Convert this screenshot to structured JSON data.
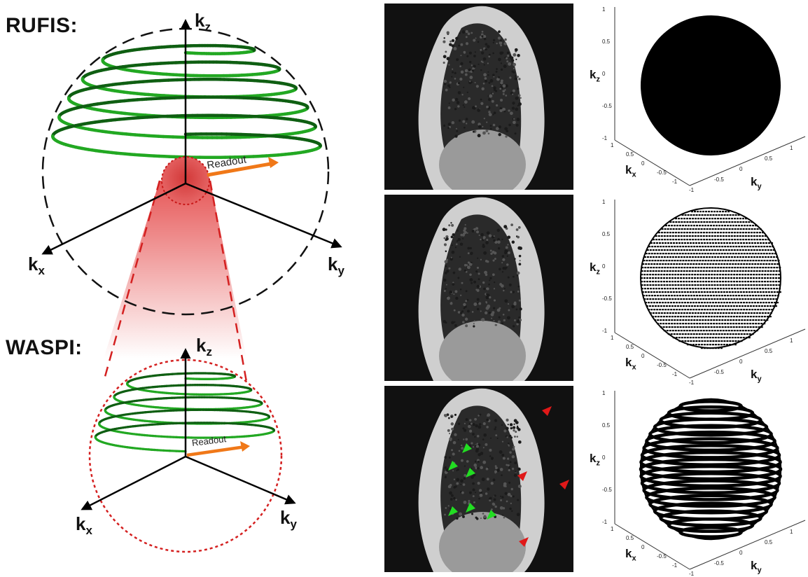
{
  "left": {
    "rufis_title": "RUFIS:",
    "waspi_title": "WASPI:",
    "readout_label": "Readout",
    "axes": {
      "kz": "k",
      "kz_sub": "z",
      "kx": "k",
      "kx_sub": "x",
      "ky": "k",
      "ky_sub": "y"
    }
  },
  "plots": {
    "kz_label": "k",
    "kz_sub": "z",
    "kx_label": "k",
    "kx_sub": "x",
    "ky_label": "k",
    "ky_sub": "y",
    "z_ticks": [
      "1",
      "0.5",
      "0",
      "-0.5",
      "-1"
    ],
    "x_ticks": [
      "1",
      "0.5",
      "0",
      "-0.5",
      "-1"
    ],
    "y_ticks": [
      "-1",
      "-0.5",
      "0",
      "0.5",
      "1"
    ]
  },
  "colors": {
    "spiral_green": "#22a822",
    "spiral_dark": "#0f5f12",
    "readout_orange": "#f07818",
    "waspi_red": "#d42020",
    "arrow_green": "#22dd22",
    "arrow_red": "#e01818"
  }
}
